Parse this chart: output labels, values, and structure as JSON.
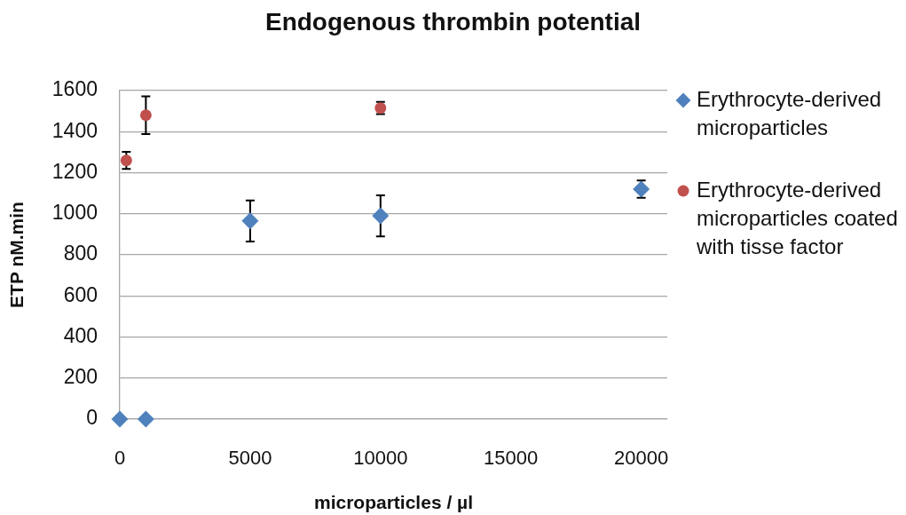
{
  "chart_data": {
    "type": "scatter",
    "title": "Endogenous thrombin potential",
    "xlabel": "microparticles / µl",
    "ylabel": "ETP nM.min",
    "series": [
      {
        "name": "Erythrocyte-derived microparticles",
        "color": "#4f81bd",
        "marker": "diamond",
        "x": [
          0,
          1000,
          5000,
          10000,
          20000
        ],
        "values": [
          0,
          0,
          965,
          990,
          1120
        ],
        "errors": [
          null,
          null,
          100,
          100,
          42
        ]
      },
      {
        "name": "Erythrocyte-derived microparticles coated with tisse factor",
        "color": "#c0504d",
        "marker": "circle",
        "x": [
          250,
          1000,
          10000
        ],
        "values": [
          1260,
          1480,
          1515
        ],
        "errors": [
          42,
          92,
          30
        ]
      }
    ],
    "xlim": [
      0,
      21000
    ],
    "xticks": [
      0,
      5000,
      10000,
      15000,
      20000
    ],
    "ylim": [
      0,
      1600
    ],
    "yticks": [
      0,
      200,
      400,
      600,
      800,
      1000,
      1200,
      1400,
      1600
    ],
    "grid": "y",
    "legend": "right"
  }
}
